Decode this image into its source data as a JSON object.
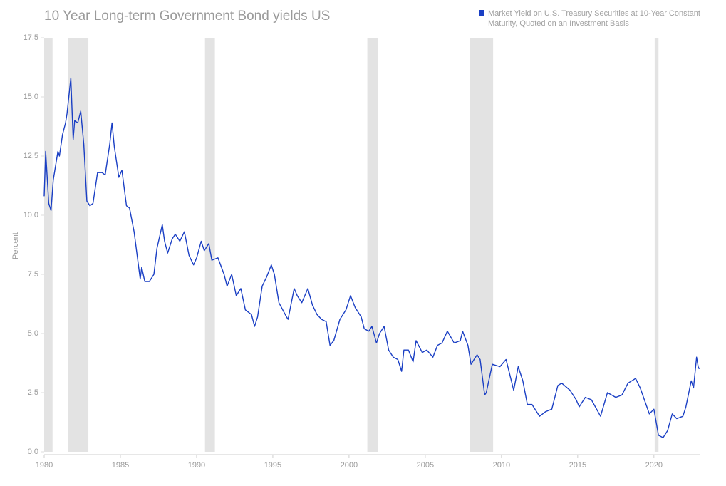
{
  "chart_data": {
    "type": "line",
    "title": "10 Year Long-term Government Bond yields US",
    "y_label": "Percent",
    "x": [
      1980.0,
      1980.1,
      1980.3,
      1980.45,
      1980.6,
      1980.9,
      1981.0,
      1981.2,
      1981.4,
      1981.5,
      1981.75,
      1981.9,
      1982.0,
      1982.2,
      1982.4,
      1982.6,
      1982.8,
      1983.0,
      1983.2,
      1983.5,
      1983.8,
      1984.0,
      1984.3,
      1984.45,
      1984.6,
      1984.9,
      1985.1,
      1985.4,
      1985.6,
      1985.9,
      1986.1,
      1986.3,
      1986.4,
      1986.6,
      1986.9,
      1987.2,
      1987.4,
      1987.75,
      1987.9,
      1988.1,
      1988.4,
      1988.6,
      1988.9,
      1989.2,
      1989.5,
      1989.8,
      1990.0,
      1990.3,
      1990.5,
      1990.8,
      1991.0,
      1991.4,
      1991.8,
      1992.0,
      1992.3,
      1992.6,
      1992.9,
      1993.2,
      1993.6,
      1993.8,
      1994.0,
      1994.3,
      1994.6,
      1994.9,
      1995.1,
      1995.4,
      1995.9,
      1996.0,
      1996.4,
      1996.6,
      1996.9,
      1997.3,
      1997.6,
      1997.9,
      1998.2,
      1998.5,
      1998.75,
      1999.0,
      1999.4,
      1999.8,
      2000.1,
      2000.4,
      2000.8,
      2001.0,
      2001.3,
      2001.5,
      2001.8,
      2002.0,
      2002.3,
      2002.6,
      2002.9,
      2003.2,
      2003.45,
      2003.6,
      2003.9,
      2004.2,
      2004.4,
      2004.8,
      2005.1,
      2005.5,
      2005.8,
      2006.1,
      2006.45,
      2006.9,
      2007.3,
      2007.45,
      2007.8,
      2008.0,
      2008.4,
      2008.6,
      2008.9,
      2009.0,
      2009.4,
      2009.9,
      2010.3,
      2010.8,
      2011.1,
      2011.4,
      2011.7,
      2012.0,
      2012.5,
      2012.9,
      2013.3,
      2013.7,
      2013.95,
      2014.5,
      2014.9,
      2015.1,
      2015.5,
      2015.9,
      2016.5,
      2016.95,
      2017.5,
      2017.9,
      2018.3,
      2018.8,
      2019.1,
      2019.7,
      2020.0,
      2020.3,
      2020.6,
      2020.9,
      2021.2,
      2021.5,
      2021.9,
      2022.1,
      2022.45,
      2022.6,
      2022.8,
      2022.9,
      2022.97
    ],
    "series": [
      {
        "name": "Market Yield on U.S. Treasury Securities at 10-Year Constant Maturity, Quoted on an Investment Basis",
        "color": "#1a3fc4",
        "values": [
          10.8,
          12.7,
          10.5,
          10.2,
          11.5,
          12.7,
          12.5,
          13.4,
          13.9,
          14.3,
          15.8,
          13.2,
          14.0,
          13.9,
          14.4,
          13.0,
          10.6,
          10.4,
          10.5,
          11.8,
          11.8,
          11.7,
          13.0,
          13.9,
          12.9,
          11.6,
          11.9,
          10.4,
          10.3,
          9.3,
          8.3,
          7.3,
          7.8,
          7.2,
          7.2,
          7.5,
          8.6,
          9.6,
          8.9,
          8.4,
          9.0,
          9.2,
          8.9,
          9.3,
          8.3,
          7.9,
          8.2,
          8.9,
          8.5,
          8.8,
          8.1,
          8.2,
          7.5,
          7.0,
          7.5,
          6.6,
          6.9,
          6.0,
          5.8,
          5.3,
          5.7,
          7.0,
          7.4,
          7.9,
          7.5,
          6.3,
          5.7,
          5.6,
          6.9,
          6.6,
          6.3,
          6.9,
          6.2,
          5.8,
          5.6,
          5.5,
          4.5,
          4.7,
          5.6,
          6.0,
          6.6,
          6.1,
          5.7,
          5.2,
          5.1,
          5.3,
          4.6,
          5.0,
          5.3,
          4.3,
          4.0,
          3.9,
          3.4,
          4.3,
          4.3,
          3.8,
          4.7,
          4.2,
          4.3,
          4.0,
          4.5,
          4.6,
          5.1,
          4.6,
          4.7,
          5.1,
          4.5,
          3.7,
          4.1,
          3.9,
          2.4,
          2.5,
          3.7,
          3.6,
          3.9,
          2.6,
          3.6,
          3.0,
          2.0,
          2.0,
          1.5,
          1.7,
          1.8,
          2.8,
          2.9,
          2.6,
          2.2,
          1.9,
          2.3,
          2.2,
          1.5,
          2.5,
          2.3,
          2.4,
          2.9,
          3.1,
          2.7,
          1.6,
          1.8,
          0.7,
          0.6,
          0.9,
          1.6,
          1.4,
          1.5,
          1.9,
          3.0,
          2.7,
          4.0,
          3.6,
          3.5
        ]
      }
    ],
    "recessions": [
      [
        1980.0,
        1980.55
      ],
      [
        1981.55,
        1982.9
      ],
      [
        1990.55,
        1991.2
      ],
      [
        2001.2,
        2001.9
      ],
      [
        2007.95,
        2009.45
      ],
      [
        2020.05,
        2020.3
      ]
    ],
    "recession_color": "#e3e3e3",
    "xlim": [
      1980,
      2023
    ],
    "xticks": [
      1980,
      1985,
      1990,
      1995,
      2000,
      2005,
      2010,
      2015,
      2020
    ],
    "ylim": [
      0,
      17.5
    ],
    "yticks": [
      {
        "value": 0,
        "label": "0.0"
      },
      {
        "value": 2.5,
        "label": "2.5"
      },
      {
        "value": 5,
        "label": "5.0"
      },
      {
        "value": 7.5,
        "label": "7.5"
      },
      {
        "value": 10,
        "label": "10.0"
      },
      {
        "value": 12.5,
        "label": "12.5"
      },
      {
        "value": 15,
        "label": "15.0"
      },
      {
        "value": 17.5,
        "label": "17.5"
      }
    ],
    "legend": "top-right",
    "grid": false
  }
}
